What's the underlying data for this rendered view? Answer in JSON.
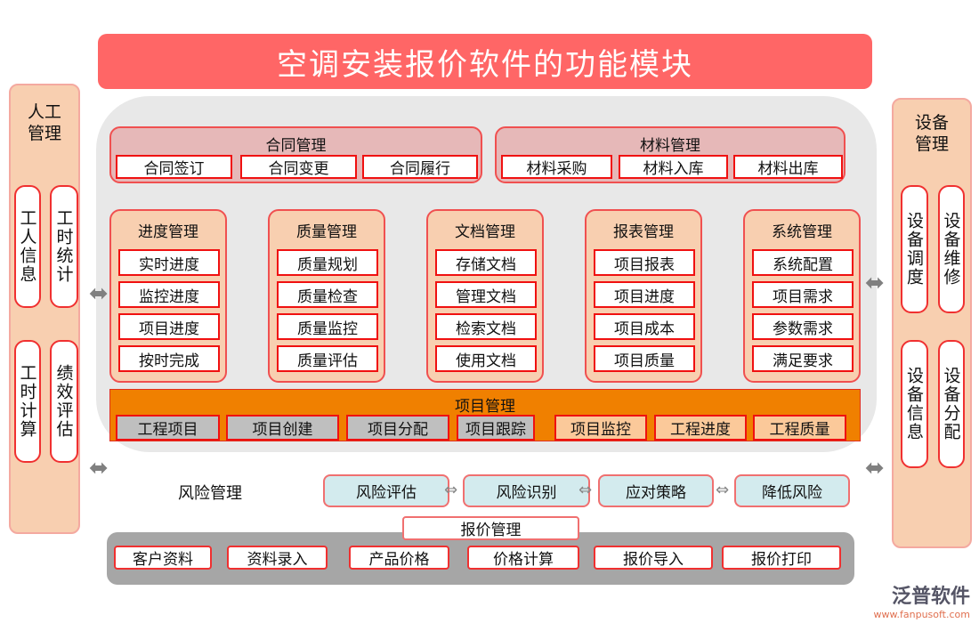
{
  "title": "空调安装报价软件的功能模块",
  "left_panel": {
    "title": "人工管理",
    "items": [
      "工人信息",
      "工时统计",
      "工时计算",
      "绩效评估"
    ]
  },
  "right_panel": {
    "title": "设备管理",
    "items": [
      "设备调度",
      "设备维修",
      "设备信息",
      "设备分配"
    ]
  },
  "contract": {
    "title": "合同管理",
    "items": [
      "合同签订",
      "合同变更",
      "合同履行"
    ]
  },
  "material": {
    "title": "材料管理",
    "items": [
      "材料采购",
      "材料入库",
      "材料出库"
    ]
  },
  "columns": [
    {
      "title": "进度管理",
      "items": [
        "实时进度",
        "监控进度",
        "项目进度",
        "按时完成"
      ]
    },
    {
      "title": "质量管理",
      "items": [
        "质量规划",
        "质量检查",
        "质量监控",
        "质量评估"
      ]
    },
    {
      "title": "文档管理",
      "items": [
        "存储文档",
        "管理文档",
        "检索文档",
        "使用文档"
      ]
    },
    {
      "title": "报表管理",
      "items": [
        "项目报表",
        "项目进度",
        "项目成本",
        "项目质量"
      ]
    },
    {
      "title": "系统管理",
      "items": [
        "系统配置",
        "项目需求",
        "参数需求",
        "满足要求"
      ]
    }
  ],
  "project": {
    "title": "项目管理",
    "items": [
      "工程项目",
      "项目创建",
      "项目分配",
      "项目跟踪",
      "项目监控",
      "工程进度",
      "工程质量"
    ]
  },
  "risk": {
    "title": "风险管理",
    "items": [
      "风险评估",
      "风险识别",
      "应对策略",
      "降低风险"
    ]
  },
  "quote": {
    "title": "报价管理",
    "items": [
      "客户资料",
      "资料录入",
      "产品价格",
      "价格计算",
      "报价导入",
      "报价打印"
    ]
  },
  "logo": {
    "name": "泛普软件",
    "url": "www.fanpusoft.com"
  },
  "colors": {
    "title_bg": "#ff6666",
    "peach": "#f8cfb0",
    "orange": "#f08000",
    "gray": "#a6a6a6",
    "teal": "#d3ebee",
    "pink": "#e6b8b8"
  }
}
